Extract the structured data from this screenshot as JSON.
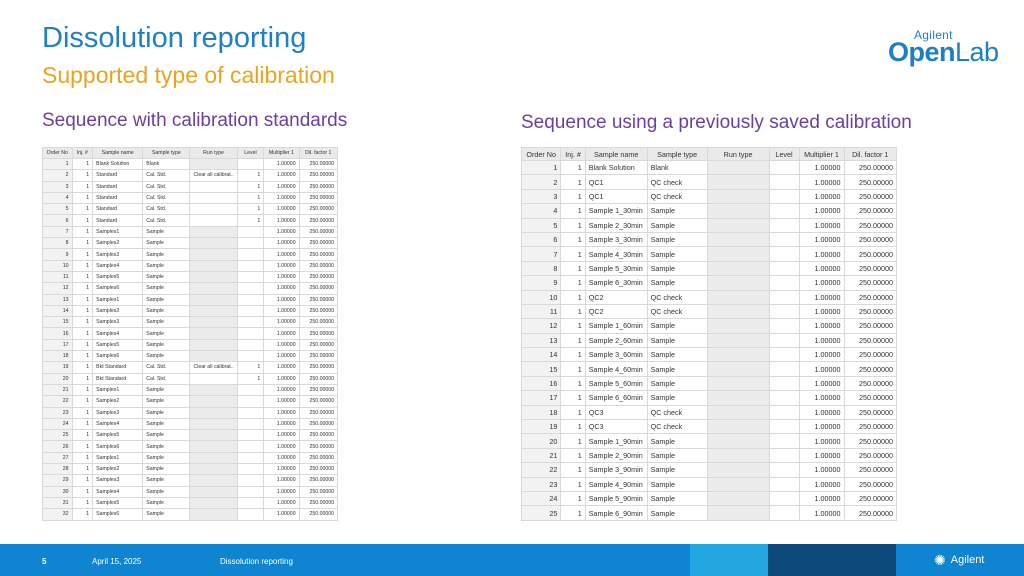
{
  "title": "Dissolution reporting",
  "subtitle": "Supported type of calibration",
  "logo": {
    "brand": "Agilent",
    "word_bold": "Open",
    "word_light": "Lab"
  },
  "left": {
    "heading": "Sequence with calibration standards",
    "columns": [
      "Order No",
      "Inj. #",
      "Sample name",
      "Sample type",
      "Run type",
      "Level",
      "Multiplier 1",
      "Dil. factor 1"
    ],
    "rows": [
      [
        "1",
        "1",
        "Blank Solution",
        "Blank",
        "",
        "",
        "1.00000",
        "250.00000"
      ],
      [
        "2",
        "1",
        "Standard",
        "Cal. Std.",
        "Clear all calibrat..",
        "1",
        "1.00000",
        "250.00000"
      ],
      [
        "3",
        "1",
        "Standard",
        "Cal. Std.",
        "",
        "1",
        "1.00000",
        "250.00000"
      ],
      [
        "4",
        "1",
        "Standard",
        "Cal. Std.",
        "",
        "1",
        "1.00000",
        "250.00000"
      ],
      [
        "5",
        "1",
        "Standard",
        "Cal. Std.",
        "",
        "1",
        "1.00000",
        "250.00000"
      ],
      [
        "6",
        "1",
        "Standard",
        "Cal. Std.",
        "",
        "1",
        "1.00000",
        "250.00000"
      ],
      [
        "7",
        "1",
        "Samples1",
        "Sample",
        "",
        "",
        "1.00000",
        "250.00000"
      ],
      [
        "8",
        "1",
        "Samples2",
        "Sample",
        "",
        "",
        "1.00000",
        "250.00000"
      ],
      [
        "9",
        "1",
        "Samples3",
        "Sample",
        "",
        "",
        "1.00000",
        "250.00000"
      ],
      [
        "10",
        "1",
        "Samples4",
        "Sample",
        "",
        "",
        "1.00000",
        "250.00000"
      ],
      [
        "11",
        "1",
        "Samples5",
        "Sample",
        "",
        "",
        "1.00000",
        "250.00000"
      ],
      [
        "12",
        "1",
        "Samples6",
        "Sample",
        "",
        "",
        "1.00000",
        "250.00000"
      ],
      [
        "13",
        "1",
        "Samples1",
        "Sample",
        "",
        "",
        "1.00000",
        "250.00000"
      ],
      [
        "14",
        "1",
        "Samples2",
        "Sample",
        "",
        "",
        "1.00000",
        "250.00000"
      ],
      [
        "15",
        "1",
        "Samples3",
        "Sample",
        "",
        "",
        "1.00000",
        "250.00000"
      ],
      [
        "16",
        "1",
        "Samples4",
        "Sample",
        "",
        "",
        "1.00000",
        "250.00000"
      ],
      [
        "17",
        "1",
        "Samples5",
        "Sample",
        "",
        "",
        "1.00000",
        "250.00000"
      ],
      [
        "18",
        "1",
        "Samples6",
        "Sample",
        "",
        "",
        "1.00000",
        "250.00000"
      ],
      [
        "19",
        "1",
        "Bkt Standard",
        "Cal. Std.",
        "Clear all calibrat..",
        "1",
        "1.00000",
        "250.00000"
      ],
      [
        "20",
        "1",
        "Bkt Standard",
        "Cal. Std.",
        "",
        "1",
        "1.00000",
        "250.00000"
      ],
      [
        "21",
        "1",
        "Samples1",
        "Sample",
        "",
        "",
        "1.00000",
        "250.00000"
      ],
      [
        "22",
        "1",
        "Samples2",
        "Sample",
        "",
        "",
        "1.00000",
        "250.00000"
      ],
      [
        "23",
        "1",
        "Samples3",
        "Sample",
        "",
        "",
        "1.00000",
        "250.00000"
      ],
      [
        "24",
        "1",
        "Samples4",
        "Sample",
        "",
        "",
        "1.00000",
        "250.00000"
      ],
      [
        "25",
        "1",
        "Samples5",
        "Sample",
        "",
        "",
        "1.00000",
        "250.00000"
      ],
      [
        "26",
        "1",
        "Samples6",
        "Sample",
        "",
        "",
        "1.00000",
        "250.00000"
      ],
      [
        "27",
        "1",
        "Samples1",
        "Sample",
        "",
        "",
        "1.00000",
        "250.00000"
      ],
      [
        "28",
        "1",
        "Samples2",
        "Sample",
        "",
        "",
        "1.00000",
        "250.00000"
      ],
      [
        "29",
        "1",
        "Samples3",
        "Sample",
        "",
        "",
        "1.00000",
        "250.00000"
      ],
      [
        "30",
        "1",
        "Samples4",
        "Sample",
        "",
        "",
        "1.00000",
        "250.00000"
      ],
      [
        "31",
        "1",
        "Samples5",
        "Sample",
        "",
        "",
        "1.00000",
        "250.00000"
      ],
      [
        "32",
        "1",
        "Samples6",
        "Sample",
        "",
        "",
        "1.00000",
        "250.00000"
      ]
    ]
  },
  "right": {
    "heading": "Sequence using a previously saved calibration",
    "columns": [
      "Order No",
      "Inj. #",
      "Sample name",
      "Sample type",
      "Run type",
      "Level",
      "Multiplier 1",
      "Dil. factor 1"
    ],
    "rows": [
      [
        "1",
        "1",
        "Blank Solution",
        "Blank",
        "",
        "",
        "1.00000",
        "250.00000"
      ],
      [
        "2",
        "1",
        "QC1",
        "QC check",
        "",
        "",
        "1.00000",
        "250.00000"
      ],
      [
        "3",
        "1",
        "QC1",
        "QC check",
        "",
        "",
        "1.00000",
        "250.00000"
      ],
      [
        "4",
        "1",
        "Sample 1_30min",
        "Sample",
        "",
        "",
        "1.00000",
        "250.00000"
      ],
      [
        "5",
        "1",
        "Sample 2_30min",
        "Sample",
        "",
        "",
        "1.00000",
        "250.00000"
      ],
      [
        "6",
        "1",
        "Sample 3_30min",
        "Sample",
        "",
        "",
        "1.00000",
        "250.00000"
      ],
      [
        "7",
        "1",
        "Sample 4_30min",
        "Sample",
        "",
        "",
        "1.00000",
        "250.00000"
      ],
      [
        "8",
        "1",
        "Sample 5_30min",
        "Sample",
        "",
        "",
        "1.00000",
        "250.00000"
      ],
      [
        "9",
        "1",
        "Sample 6_30min",
        "Sample",
        "",
        "",
        "1.00000",
        "250.00000"
      ],
      [
        "10",
        "1",
        "QC2",
        "QC check",
        "",
        "",
        "1.00000",
        "250.00000"
      ],
      [
        "11",
        "1",
        "QC2",
        "QC check",
        "",
        "",
        "1.00000",
        "250.00000"
      ],
      [
        "12",
        "1",
        "Sample 1_60min",
        "Sample",
        "",
        "",
        "1.00000",
        "250.00000"
      ],
      [
        "13",
        "1",
        "Sample 2_60min",
        "Sample",
        "",
        "",
        "1.00000",
        "250.00000"
      ],
      [
        "14",
        "1",
        "Sample 3_60min",
        "Sample",
        "",
        "",
        "1.00000",
        "250.00000"
      ],
      [
        "15",
        "1",
        "Sample 4_60min",
        "Sample",
        "",
        "",
        "1.00000",
        "250.00000"
      ],
      [
        "16",
        "1",
        "Sample 5_60min",
        "Sample",
        "",
        "",
        "1.00000",
        "250.00000"
      ],
      [
        "17",
        "1",
        "Sample 6_60min",
        "Sample",
        "",
        "",
        "1.00000",
        "250.00000"
      ],
      [
        "18",
        "1",
        "QC3",
        "QC check",
        "",
        "",
        "1.00000",
        "250.00000"
      ],
      [
        "19",
        "1",
        "QC3",
        "QC check",
        "",
        "",
        "1.00000",
        "250.00000"
      ],
      [
        "20",
        "1",
        "Sample 1_90min",
        "Sample",
        "",
        "",
        "1.00000",
        "250.00000"
      ],
      [
        "21",
        "1",
        "Sample 2_90min",
        "Sample",
        "",
        "",
        "1.00000",
        "250.00000"
      ],
      [
        "22",
        "1",
        "Sample 3_90min",
        "Sample",
        "",
        "",
        "1.00000",
        "250.00000"
      ],
      [
        "23",
        "1",
        "Sample 4_90min",
        "Sample",
        "",
        "",
        "1.00000",
        "250.00000"
      ],
      [
        "24",
        "1",
        "Sample 5_90min",
        "Sample",
        "",
        "",
        "1.00000",
        "250.00000"
      ],
      [
        "25",
        "1",
        "Sample 6_90min",
        "Sample",
        "",
        "",
        "1.00000",
        "250.00000"
      ]
    ]
  },
  "footer": {
    "page": "5",
    "date": "April 15, 2025",
    "title": "Dissolution reporting",
    "brand": "Agilent"
  }
}
